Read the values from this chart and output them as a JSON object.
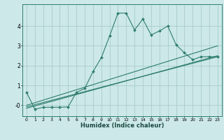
{
  "title": "",
  "xlabel": "Humidex (Indice chaleur)",
  "bg_color": "#cce8e8",
  "line_color": "#2e7d6e",
  "grid_color": "#aacccc",
  "xlim": [
    -0.5,
    23.5
  ],
  "ylim": [
    -0.55,
    5.1
  ],
  "yticks": [
    0,
    1,
    2,
    3,
    4
  ],
  "ytick_labels": [
    "-0",
    "1",
    "2",
    "3",
    "4"
  ],
  "xticks": [
    0,
    1,
    2,
    3,
    4,
    5,
    6,
    7,
    8,
    9,
    10,
    11,
    12,
    13,
    14,
    15,
    16,
    17,
    18,
    19,
    20,
    21,
    22,
    23
  ],
  "main_x": [
    0,
    1,
    2,
    3,
    4,
    5,
    6,
    7,
    8,
    9,
    10,
    11,
    12,
    13,
    14,
    15,
    16,
    17,
    18,
    19,
    20,
    21,
    22,
    23
  ],
  "main_y": [
    0.65,
    -0.2,
    -0.1,
    -0.1,
    -0.1,
    -0.08,
    0.65,
    0.85,
    1.7,
    2.4,
    3.5,
    4.65,
    4.65,
    3.8,
    4.35,
    3.55,
    3.75,
    4.0,
    3.05,
    2.65,
    2.3,
    2.45,
    2.45,
    2.45
  ],
  "line2_x": [
    0,
    23
  ],
  "line2_y": [
    -0.08,
    2.45
  ],
  "line3_x": [
    0,
    23
  ],
  "line3_y": [
    -0.15,
    2.5
  ],
  "line4_x": [
    0,
    23
  ],
  "line4_y": [
    0.0,
    3.0
  ]
}
